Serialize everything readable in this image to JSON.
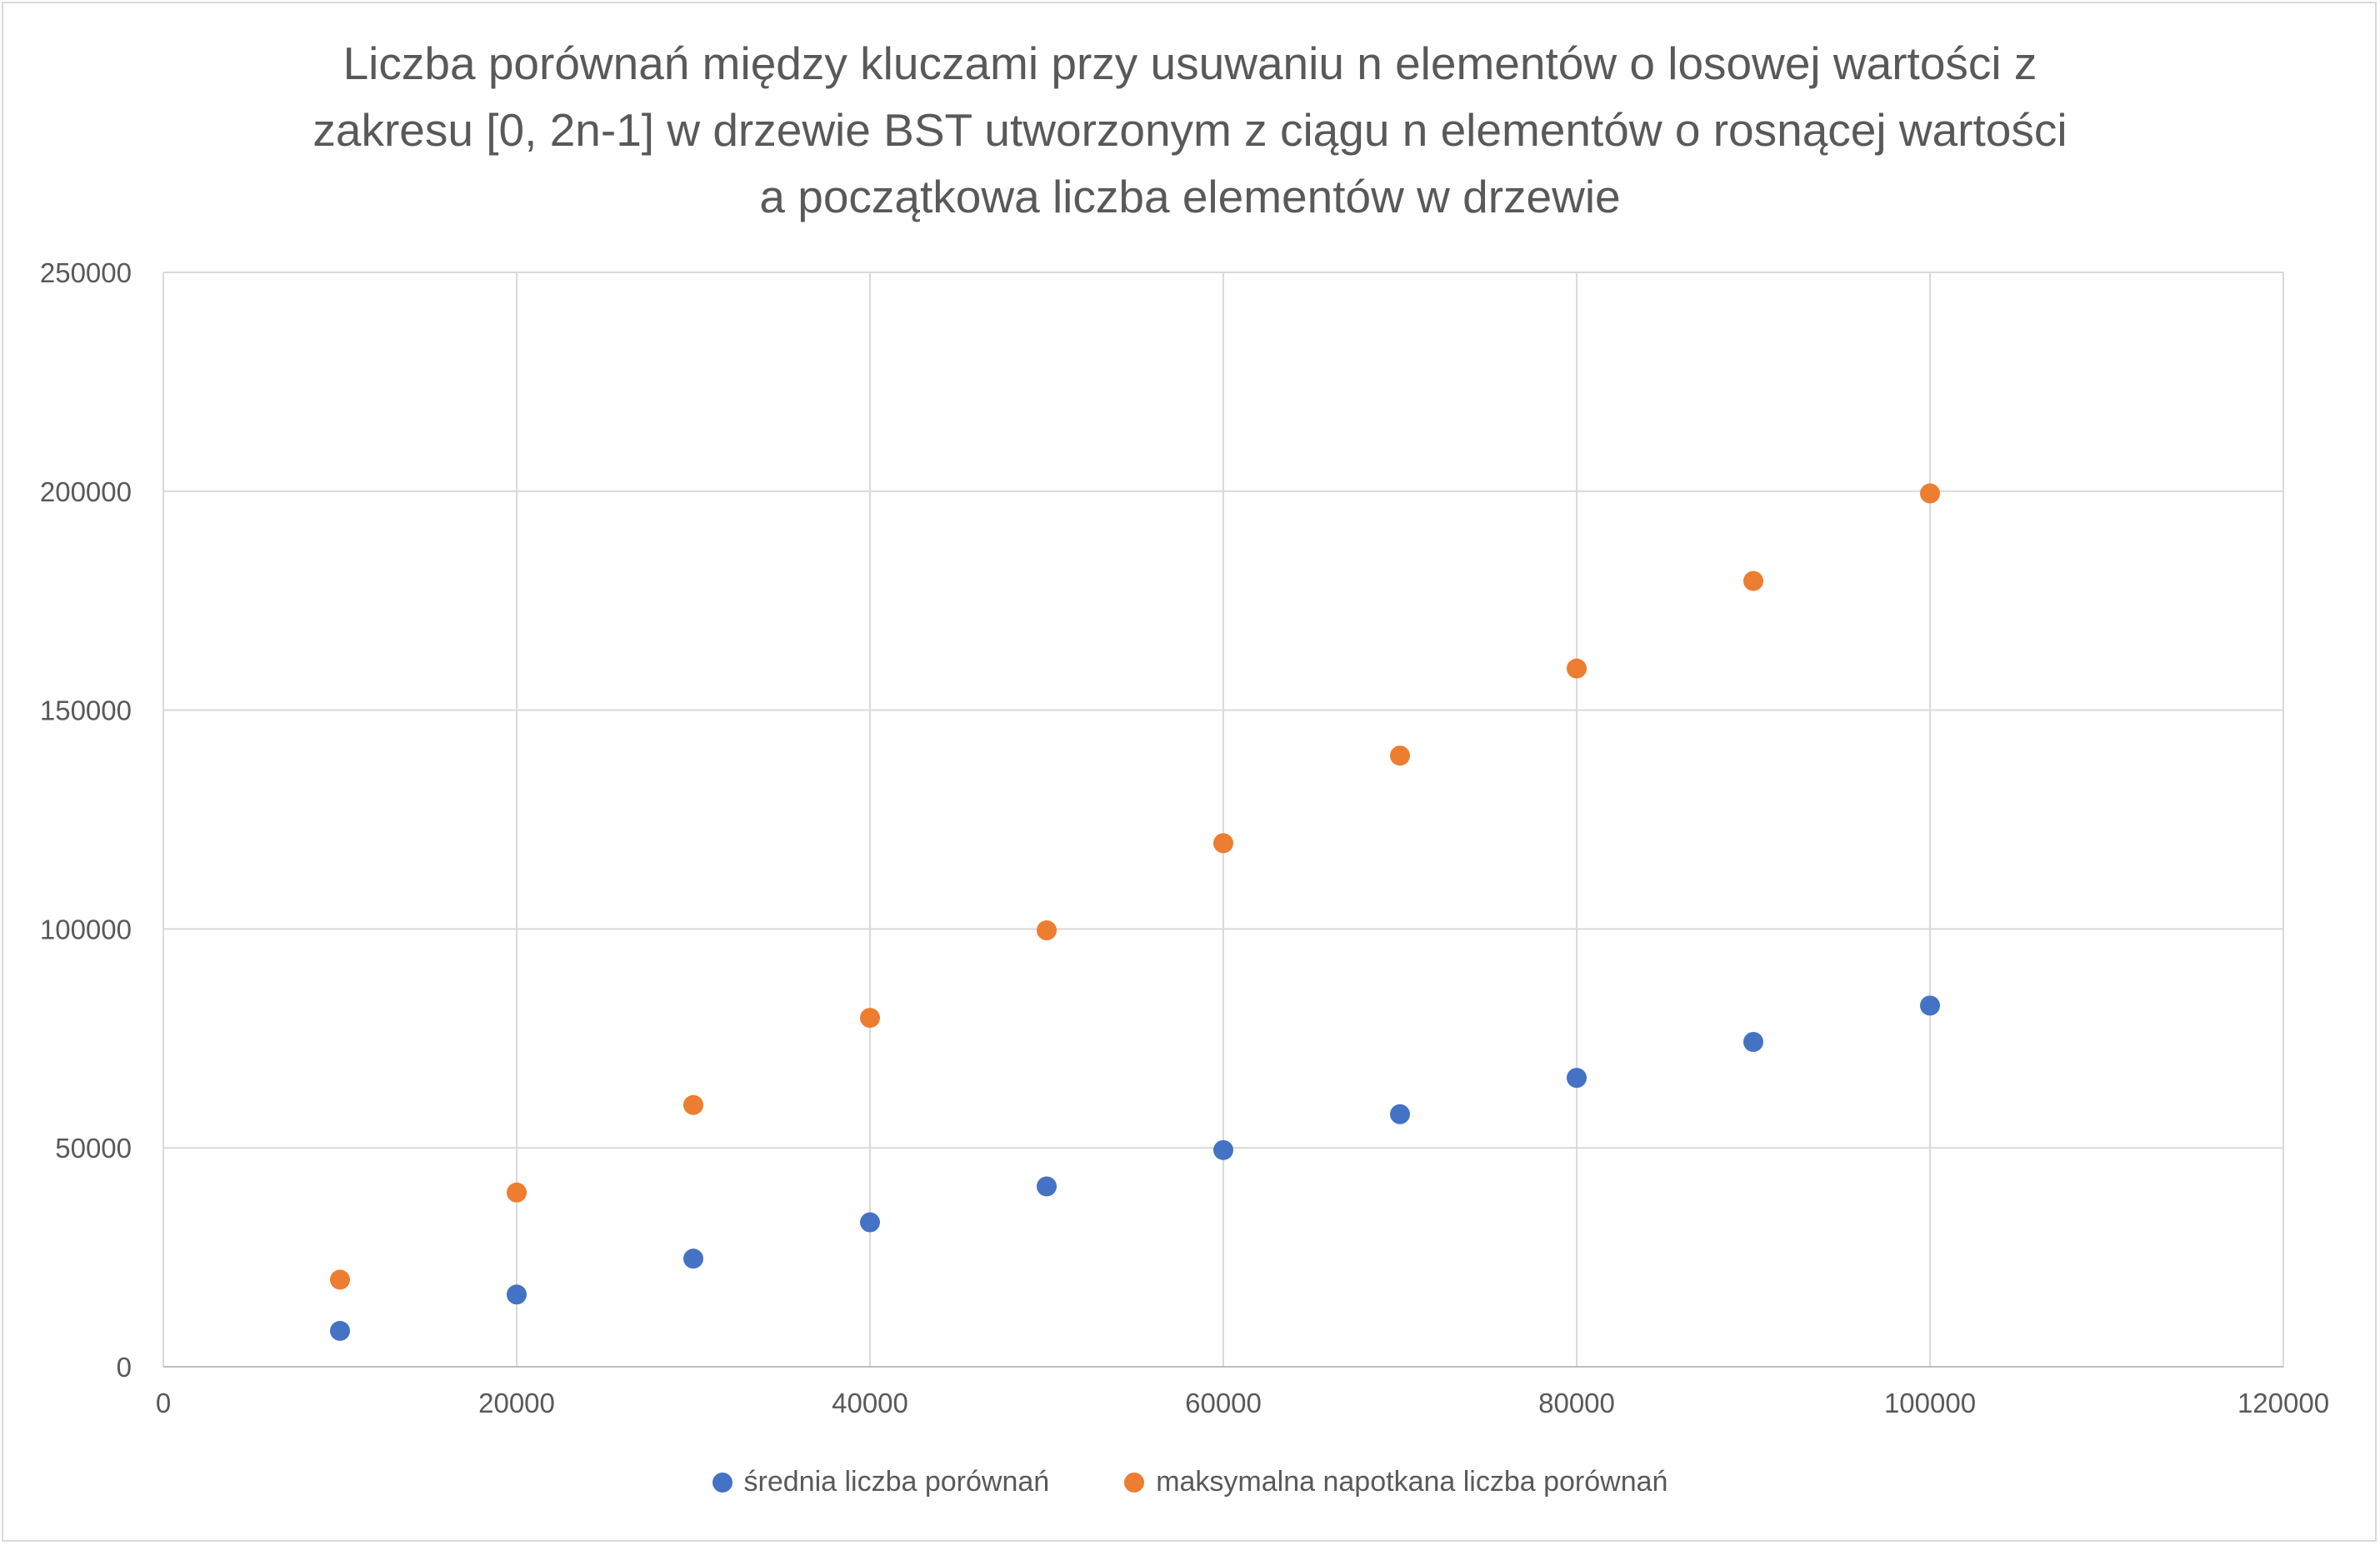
{
  "chart_data": {
    "type": "scatter",
    "title_lines": [
      "Liczba porównań między kluczami przy usuwaniu n elementów o losowej wartości z",
      "zakresu [0, 2n-1] w drzewie BST utworzonym z ciągu n elementów o rosnącej wartości",
      "a początkowa liczba elementów w drzewie"
    ],
    "xlabel": "",
    "ylabel": "",
    "xlim": [
      0,
      120000
    ],
    "ylim": [
      0,
      250000
    ],
    "x_ticks": [
      0,
      20000,
      40000,
      60000,
      80000,
      100000,
      120000
    ],
    "y_ticks": [
      0,
      50000,
      100000,
      150000,
      200000,
      250000
    ],
    "grid": true,
    "legend_position": "bottom",
    "series": [
      {
        "name": "średnia liczba porównań",
        "color": "#4472c4",
        "points": [
          [
            10000,
            8200
          ],
          [
            20000,
            16500
          ],
          [
            30000,
            24700
          ],
          [
            40000,
            33000
          ],
          [
            50000,
            41200
          ],
          [
            60000,
            49500
          ],
          [
            70000,
            57700
          ],
          [
            80000,
            66000
          ],
          [
            90000,
            74200
          ],
          [
            100000,
            82500
          ]
        ]
      },
      {
        "name": "maksymalna napotkana liczba porównań",
        "color": "#ed7d31",
        "points": [
          [
            10000,
            19900
          ],
          [
            20000,
            39800
          ],
          [
            30000,
            59800
          ],
          [
            40000,
            79700
          ],
          [
            50000,
            99700
          ],
          [
            60000,
            119600
          ],
          [
            70000,
            139600
          ],
          [
            80000,
            159500
          ],
          [
            90000,
            179500
          ],
          [
            100000,
            199500
          ]
        ]
      }
    ]
  }
}
